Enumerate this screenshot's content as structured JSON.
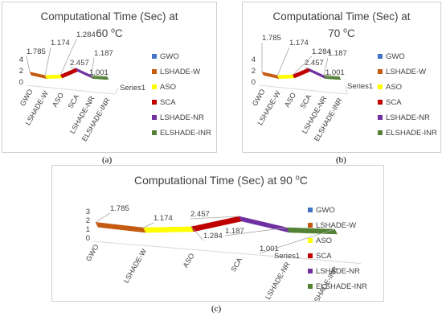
{
  "chart_data": [
    {
      "id": "a",
      "type": "line",
      "title": "Computational Time (Sec) at 60 °C",
      "title_line1": "Computational Time (Sec) at",
      "title_line2": "60 °C",
      "categories": [
        "GWO",
        "LSHADE-W",
        "ASO",
        "SCA",
        "LSHADE-NR",
        "ELSHADE-INR"
      ],
      "values": [
        1.785,
        1.174,
        1.284,
        2.457,
        1.187,
        1.001
      ],
      "data_labels": [
        "1.785",
        "1.174",
        "1.284",
        "2.457",
        "1.187",
        "1.001"
      ],
      "y_ticks": [
        "0",
        "2",
        "4"
      ],
      "ylim": [
        0,
        4
      ],
      "depth_axis_label": "Series1",
      "legend": [
        "GWO",
        "LSHADE-W",
        "ASO",
        "SCA",
        "LSHADE-NR",
        "ELSHADE-INR"
      ],
      "legend_placement": "right",
      "caption": "(a)"
    },
    {
      "id": "b",
      "type": "line",
      "title": "Computational Time (Sec) at 70 °C",
      "title_line1": "Computational Time (Sec) at",
      "title_line2": "70 °C",
      "categories": [
        "GWO",
        "LSHADE-W",
        "ASO",
        "SCA",
        "LSHADE-NR",
        "ELSHADE-INR"
      ],
      "values": [
        1.785,
        1.174,
        1.284,
        2.457,
        1.187,
        1.001
      ],
      "data_labels": [
        "1.785",
        "1.174",
        "1.284",
        "2.457",
        "1.187",
        "1.001"
      ],
      "y_ticks": [
        "0",
        "2",
        "4"
      ],
      "ylim": [
        0,
        4
      ],
      "depth_axis_label": "Series1",
      "legend": [
        "GWO",
        "LSHADE-W",
        "ASO",
        "SCA",
        "LSHADE-NR",
        "ELSHADE-INR"
      ],
      "legend_placement": "right",
      "caption": "(b)"
    },
    {
      "id": "c",
      "type": "line",
      "title": "Computational Time (Sec) at 90 °C",
      "title_line1": "Computational Time (Sec) at 90 °C",
      "title_line2": "",
      "categories": [
        "GWO",
        "LSHADE-W",
        "ASO",
        "SCA",
        "LSHADE-NR",
        "ELSHADE-INR"
      ],
      "values": [
        1.785,
        1.174,
        1.284,
        2.457,
        1.187,
        1.001
      ],
      "data_labels": [
        "1.785",
        "1.174",
        "1.284",
        "2.457",
        "1.187",
        "1.001"
      ],
      "y_ticks": [
        "0",
        "1",
        "2",
        "3"
      ],
      "ylim": [
        0,
        3
      ],
      "depth_axis_label": "Series1",
      "legend": [
        "GWO",
        "LSHADE-W",
        "ASO",
        "SCA",
        "LSHADE-NR",
        "ELSHADE-INR"
      ],
      "legend_placement": "right",
      "caption": "(c)"
    }
  ],
  "colors": {
    "GWO": "#4472c4",
    "LSHADE-W": "#c55a11",
    "ASO": "#ffff00",
    "SCA": "#c00000",
    "LSHADE-NR": "#7030a0",
    "ELSHADE-INR": "#548235"
  }
}
